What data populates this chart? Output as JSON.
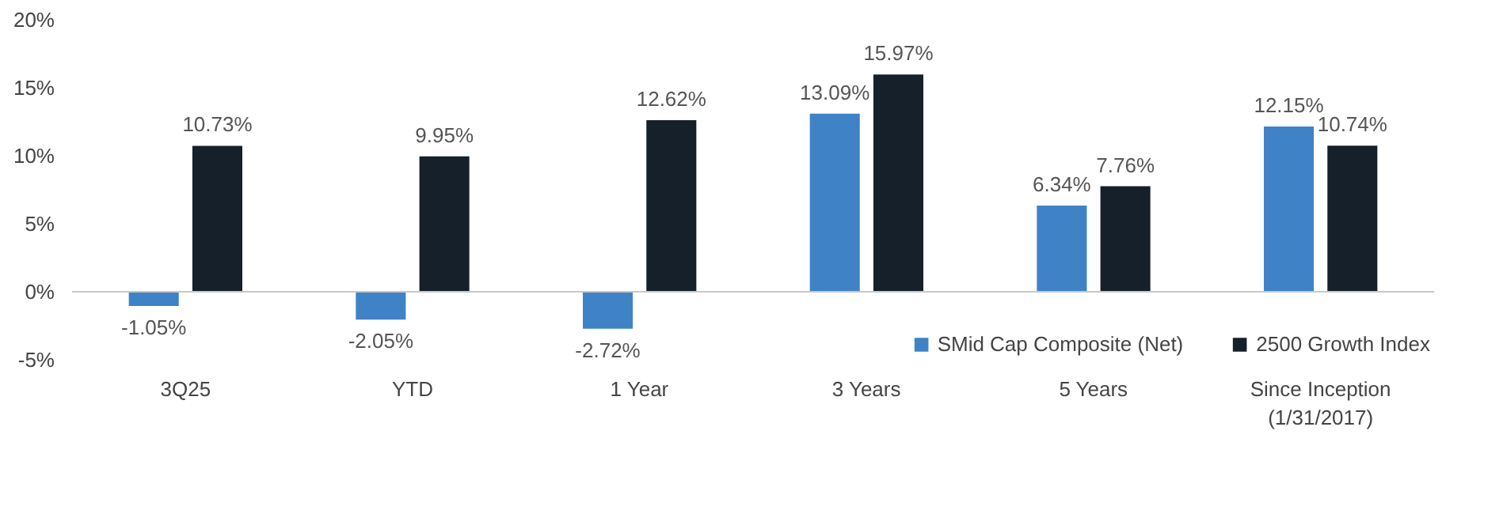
{
  "chart_data": {
    "type": "bar",
    "categories": [
      "3Q25",
      "YTD",
      "1 Year",
      "3 Years",
      "5 Years",
      "Since Inception\n(1/31/2017)"
    ],
    "series": [
      {
        "name": "SMid Cap Composite (Net)",
        "color": "#3f83c6",
        "values": [
          -1.05,
          -2.05,
          -2.72,
          13.09,
          6.34,
          12.15
        ],
        "value_labels": [
          "-1.05%",
          "-2.05%",
          "-2.72%",
          "13.09%",
          "6.34%",
          "12.15%"
        ]
      },
      {
        "name": "2500 Growth Index",
        "color": "#16202b",
        "values": [
          10.73,
          9.95,
          12.62,
          15.97,
          7.76,
          10.74
        ],
        "value_labels": [
          "10.73%",
          "9.95%",
          "12.62%",
          "15.97%",
          "7.76%",
          "10.74%"
        ]
      }
    ],
    "ylim": [
      -5,
      20
    ],
    "yticks": [
      {
        "value": -5,
        "label": "-5%"
      },
      {
        "value": 0,
        "label": "0%"
      },
      {
        "value": 5,
        "label": "5%"
      },
      {
        "value": 10,
        "label": "10%"
      },
      {
        "value": 15,
        "label": "15%"
      },
      {
        "value": 20,
        "label": "20%"
      }
    ],
    "ref_lines": [
      {
        "axis": "y",
        "value": 0,
        "color": "#c8c8c8"
      }
    ],
    "grid": false,
    "legend": "bottom"
  }
}
